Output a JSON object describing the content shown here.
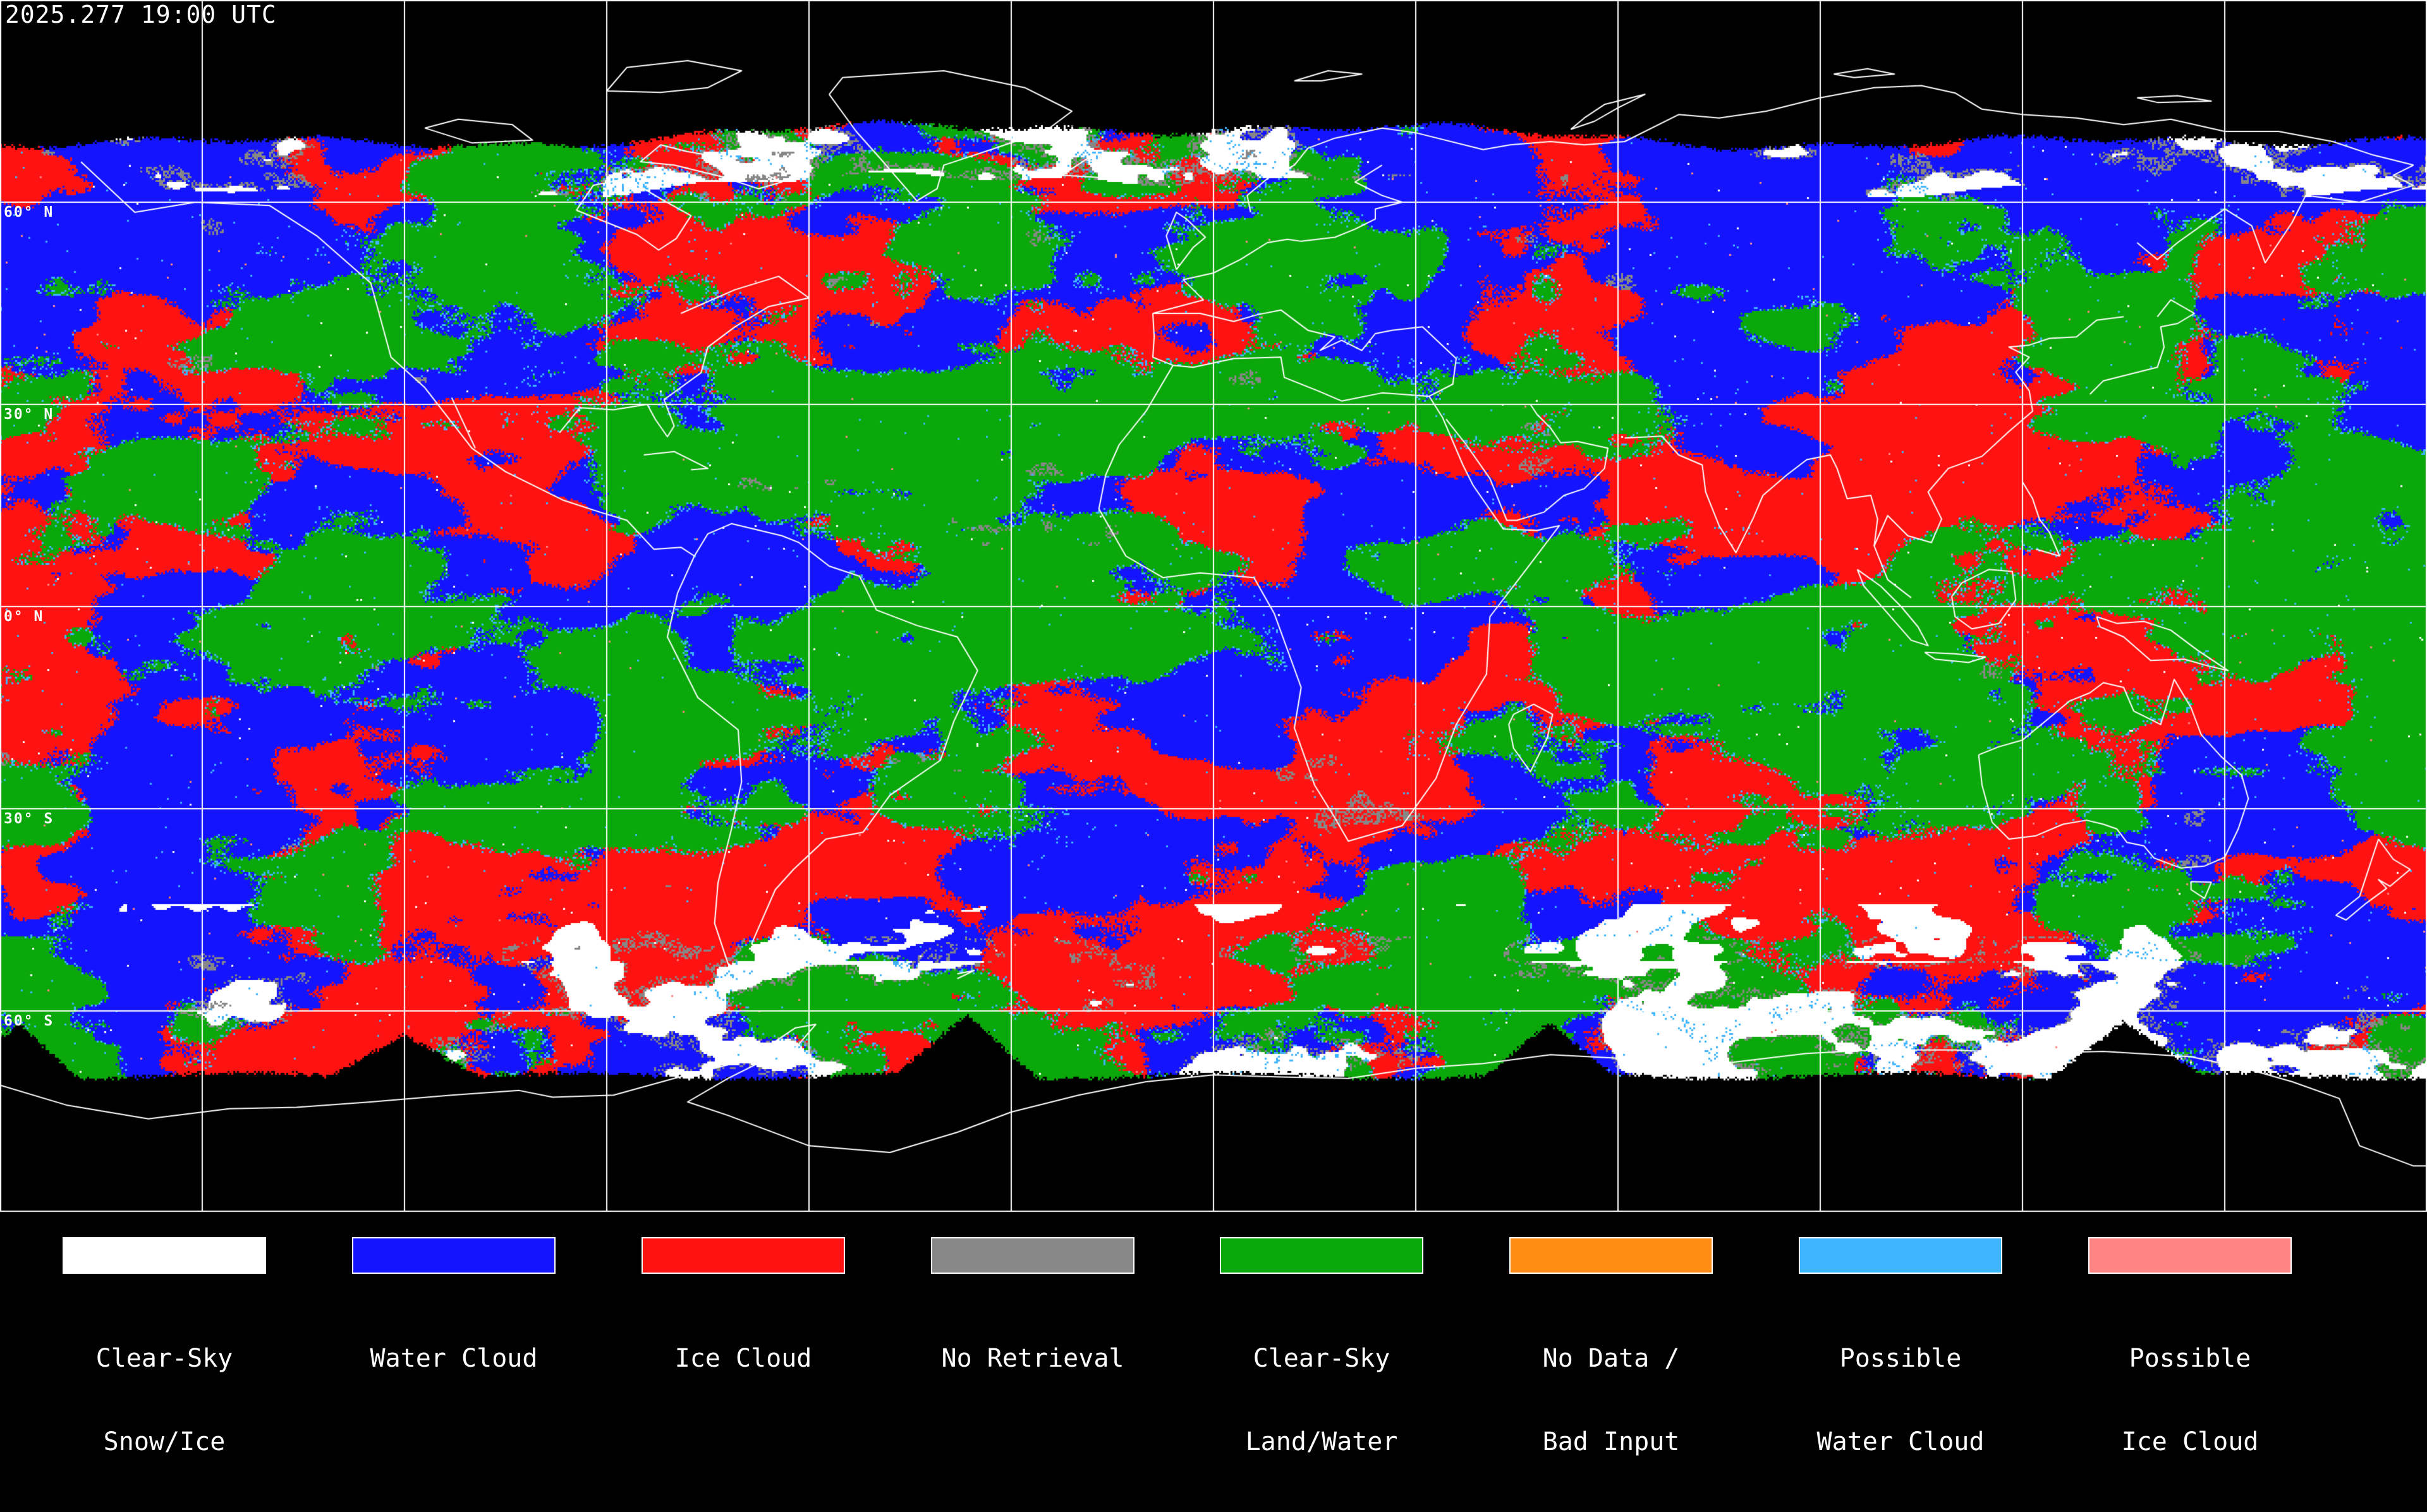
{
  "header": {
    "timestamp": "2025.277 19:00 UTC"
  },
  "map": {
    "latitude_labels": [
      {
        "text": "60° N",
        "lat": 60
      },
      {
        "text": "30° N",
        "lat": 30
      },
      {
        "text": "0° N",
        "lat": 0
      },
      {
        "text": "30° S",
        "lat": -30
      },
      {
        "text": "60° S",
        "lat": -60
      }
    ],
    "palette": {
      "background": "#000000",
      "grid": "#FFFFFF",
      "coastline": "#FFFFFF",
      "clear_sky_snow_ice": "#FFFFFF",
      "water_cloud": "#1414FF",
      "ice_cloud": "#FF1212",
      "no_retrieval": "#878787",
      "clear_sky_land_water": "#0AA80A",
      "no_data_bad_input": "#FF8C14",
      "possible_water_cloud": "#3FB4FF",
      "possible_ice_cloud": "#FF8585"
    }
  },
  "legend": {
    "items": [
      {
        "id": "clear-sky-snow-ice",
        "line1": "Clear-Sky",
        "line2": "Snow/Ice",
        "color": "#FFFFFF"
      },
      {
        "id": "water-cloud",
        "line1": "Water Cloud",
        "line2": "",
        "color": "#1414FF"
      },
      {
        "id": "ice-cloud",
        "line1": "Ice Cloud",
        "line2": "",
        "color": "#FF1212"
      },
      {
        "id": "no-retrieval",
        "line1": "No Retrieval",
        "line2": "",
        "color": "#878787"
      },
      {
        "id": "clear-sky-land-water",
        "line1": "Clear-Sky",
        "line2": "Land/Water",
        "color": "#0AA80A"
      },
      {
        "id": "no-data-bad-input",
        "line1": "No Data /",
        "line2": "Bad Input",
        "color": "#FF8C14"
      },
      {
        "id": "possible-water-cloud",
        "line1": "Possible",
        "line2": "Water Cloud",
        "color": "#3FB4FF"
      },
      {
        "id": "possible-ice-cloud",
        "line1": "Possible",
        "line2": "Ice Cloud",
        "color": "#FF8585"
      }
    ]
  }
}
